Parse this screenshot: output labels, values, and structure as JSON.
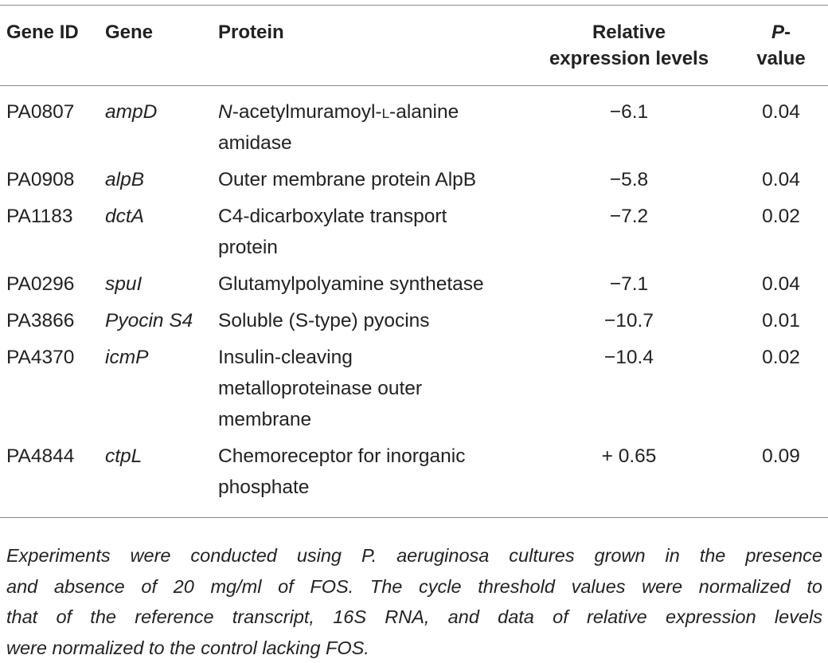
{
  "table": {
    "headers": {
      "gene_id": "Gene ID",
      "gene": "Gene",
      "protein": "Protein",
      "relative_line1": "Relative",
      "relative_line2": "expression levels",
      "pvalue_line1": "P-",
      "pvalue_line2": "value"
    },
    "rows": [
      {
        "gene_id": "PA0807",
        "gene": "ampD",
        "protein_prefix": "N",
        "protein_line1": "-acetylmuramoyl-",
        "protein_smallcaps": "l",
        "protein_line1_rest": "-alanine",
        "protein_line2": "amidase",
        "relative": "−6.1",
        "pvalue": "0.04"
      },
      {
        "gene_id": "PA0908",
        "gene": "alpB",
        "protein": "Outer membrane protein AlpB",
        "relative": "−5.8",
        "pvalue": "0.04"
      },
      {
        "gene_id": "PA1183",
        "gene": "dctA",
        "protein_line1": "C4-dicarboxylate transport",
        "protein_line2": "protein",
        "relative": "−7.2",
        "pvalue": "0.02"
      },
      {
        "gene_id": "PA0296",
        "gene": "spuI",
        "protein": "Glutamylpolyamine synthetase",
        "relative": "−7.1",
        "pvalue": "0.04"
      },
      {
        "gene_id": "PA3866",
        "gene": "Pyocin S4",
        "protein": "Soluble (S-type) pyocins",
        "relative": "−10.7",
        "pvalue": "0.01"
      },
      {
        "gene_id": "PA4370",
        "gene": "icmP",
        "protein_line1": "Insulin-cleaving",
        "protein_line2": "metalloproteinase outer",
        "protein_line3": "membrane",
        "relative": "−10.4",
        "pvalue": "0.02"
      },
      {
        "gene_id": "PA4844",
        "gene": "ctpL",
        "protein_line1": "Chemoreceptor for inorganic",
        "protein_line2": "phosphate",
        "relative": "+ 0.65",
        "pvalue": "0.09"
      }
    ]
  },
  "footnote": {
    "line1": "Experiments were conducted using P. aeruginosa cultures grown in the presence",
    "line2": "and absence of 20 mg/ml of FOS. The cycle threshold values were normalized to",
    "line3": "that of the reference transcript, 16S RNA, and data of relative expression levels",
    "line4": "were normalized to the control lacking FOS."
  }
}
